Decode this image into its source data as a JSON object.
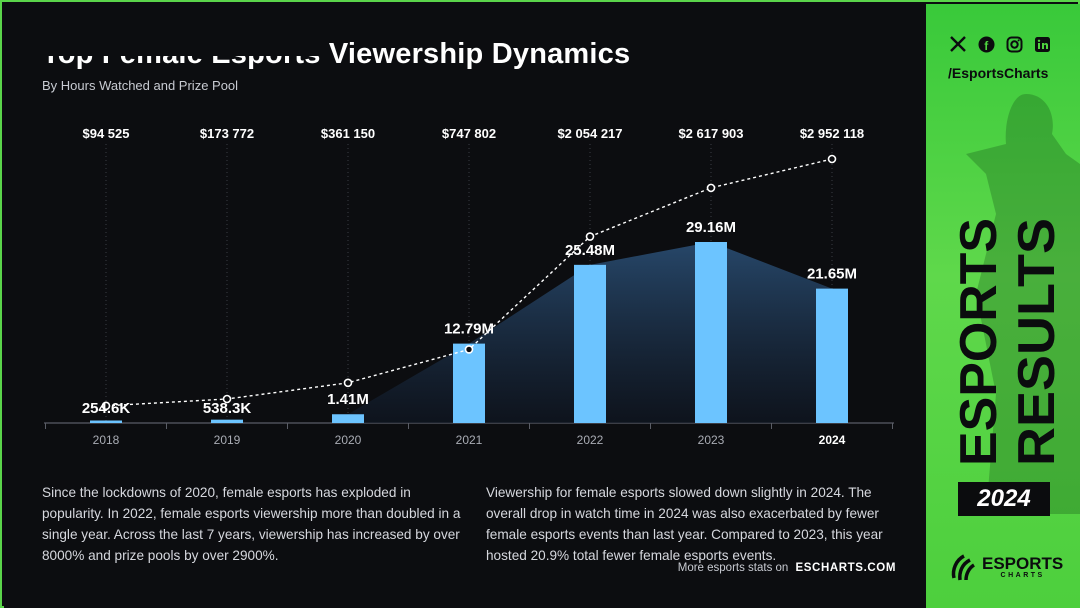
{
  "header": {
    "title": "Top Female Esports Viewership Dynamics",
    "subtitle": "By Hours Watched and Prize Pool"
  },
  "chart_data": {
    "type": "bar",
    "categories": [
      "2018",
      "2019",
      "2020",
      "2021",
      "2022",
      "2023",
      "2024"
    ],
    "series": [
      {
        "values": [
          0.2546,
          0.5383,
          1.41,
          12.79,
          25.48,
          29.16,
          21.65
        ],
        "labels": [
          "254.6K",
          "538.3K",
          "1.41M",
          "12.79M",
          "25.48M",
          "29.16M",
          "21.65M"
        ]
      },
      {
        "values": [
          94525,
          173772,
          361150,
          747802,
          2054217,
          2617903,
          2952118
        ],
        "labels": [
          "$94 525",
          "$173 772",
          "$361 150",
          "$747 802",
          "$2 054 217",
          "$2 617 903",
          "$2 952 118"
        ]
      }
    ],
    "highlight_category": "2024",
    "bar_color": "#6cc4ff",
    "area_color": "#1e3a58",
    "line_style": "dashed white with hollow markers"
  },
  "text": {
    "left_paragraph": "Since the lockdowns of 2020, female esports has exploded in popularity. In 2022, female esports viewership more than doubled in a single year. Across the last 7 years, viewership has increased by over 8000% and prize pools by over 2900%.",
    "right_paragraph": "Viewership for female esports slowed down slightly in 2024. The overall drop in watch time in 2024 was also exacerbated by fewer female esports events than last year.  Compared to 2023, this year hosted 20.9% total fewer female esports events.",
    "more_stats": "More esports stats on",
    "site": "ESCHARTS.COM"
  },
  "sidebar": {
    "social_icons": [
      "x-icon",
      "facebook-icon",
      "instagram-icon",
      "linkedin-icon"
    ],
    "handle": "/EsportsCharts",
    "vertical_line1": "ESPORTS",
    "vertical_line2": "RESULTS",
    "year": "2024",
    "brand_name": "ESPORTS",
    "brand_sub": "CHARTS",
    "accent": "#4fd43f"
  }
}
